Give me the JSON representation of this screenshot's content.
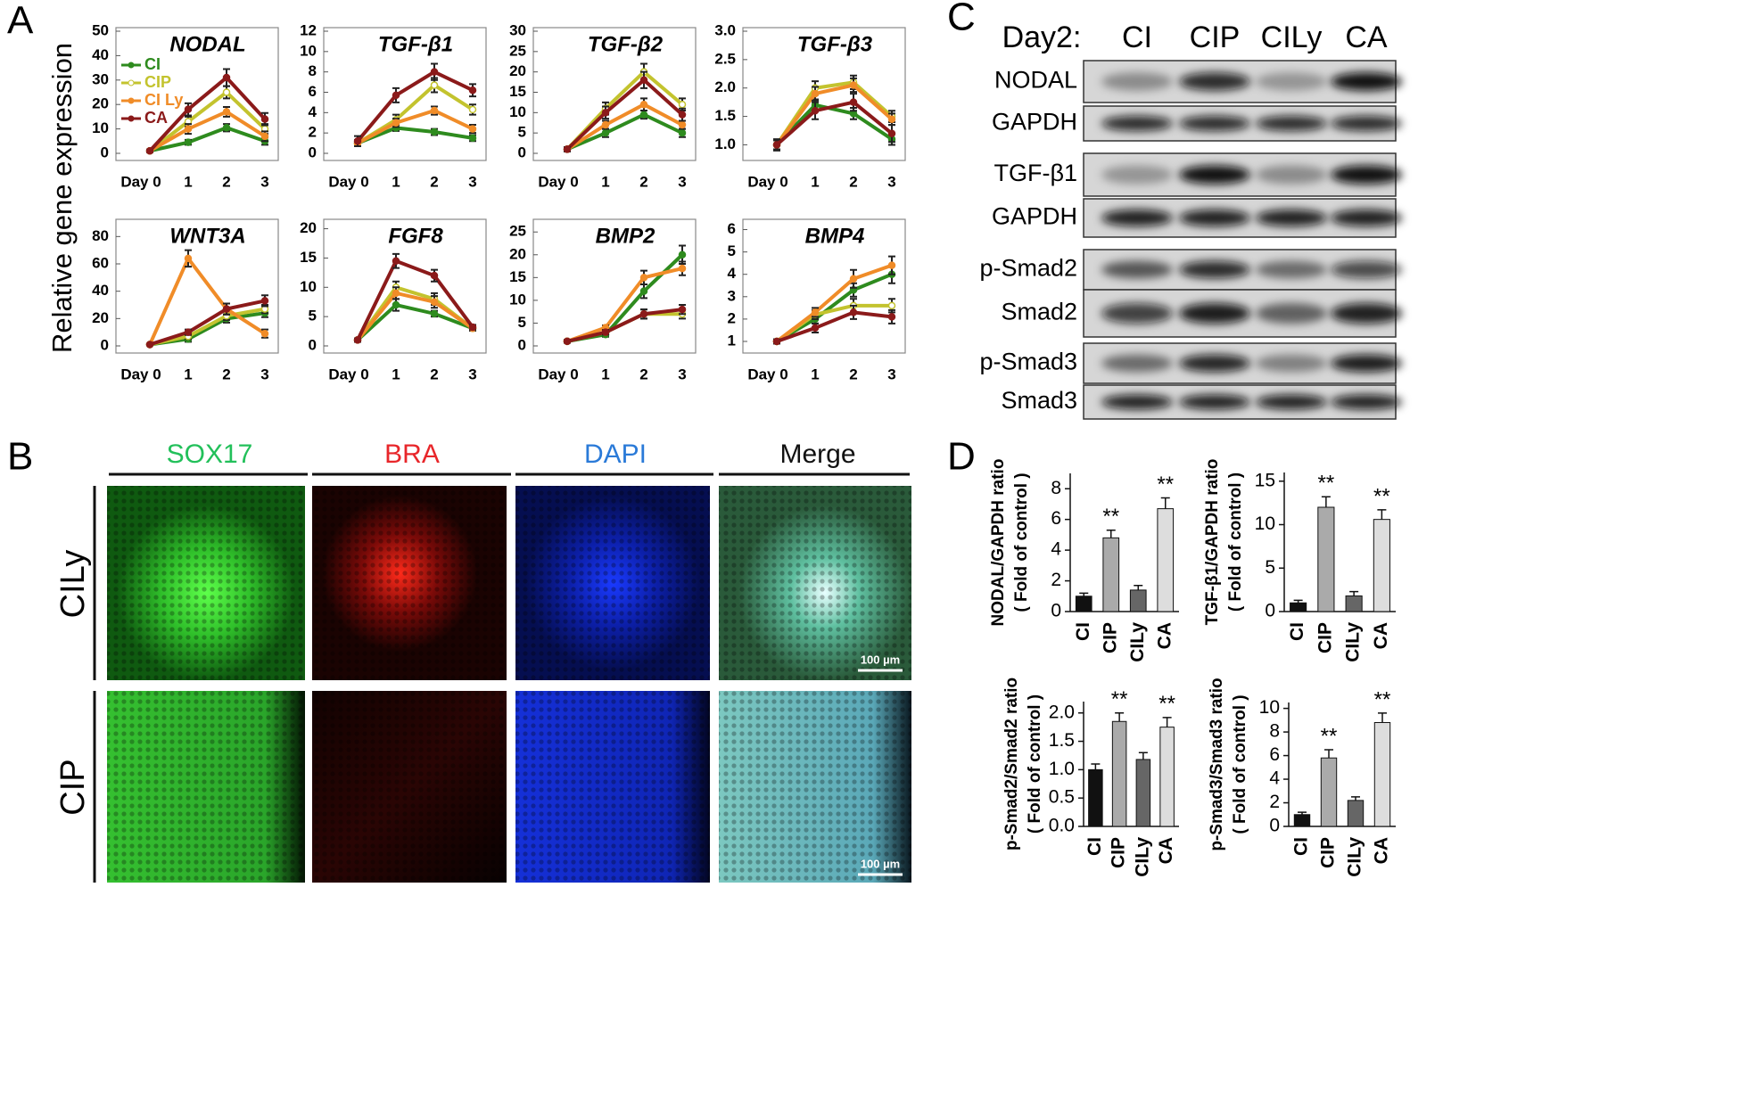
{
  "panel_labels": [
    "A",
    "B",
    "C",
    "D"
  ],
  "panel_a": {
    "ylabel": "Relative gene expression"
  },
  "chart_data": [
    {
      "type": "line",
      "title": "NODAL",
      "categories": [
        "Day 0",
        "1",
        "2",
        "3"
      ],
      "ylim": [
        0,
        50
      ],
      "yticks": [
        0,
        10,
        20,
        30,
        40,
        50
      ],
      "series": [
        {
          "name": "CI",
          "color": "#2e8b1e",
          "values": [
            1,
            4.5,
            10.5,
            5
          ],
          "errors": [
            0.5,
            1,
            1.5,
            1.5
          ]
        },
        {
          "name": "CIP",
          "color": "#c3c32e",
          "values": [
            1,
            13,
            25,
            10
          ],
          "errors": [
            0.5,
            2,
            2.5,
            2
          ]
        },
        {
          "name": "CI Ly",
          "color": "#f08c28",
          "values": [
            1,
            10,
            17,
            7
          ],
          "errors": [
            0.5,
            2,
            2,
            2
          ]
        },
        {
          "name": "CA",
          "color": "#8b1a1a",
          "values": [
            1,
            18,
            31,
            14
          ],
          "errors": [
            0.5,
            2.5,
            3.5,
            2.5
          ]
        }
      ]
    },
    {
      "type": "line",
      "title": "TGF-β1",
      "categories": [
        "Day 0",
        "1",
        "2",
        "3"
      ],
      "ylim": [
        0,
        12
      ],
      "yticks": [
        0,
        2,
        4,
        6,
        8,
        10,
        12
      ],
      "series": [
        {
          "color": "#2e8b1e",
          "values": [
            1,
            2.5,
            2.1,
            1.5
          ],
          "errors": [
            0.3,
            0.3,
            0.3,
            0.3
          ]
        },
        {
          "color": "#c3c32e",
          "values": [
            1,
            3.3,
            6.7,
            4.3
          ],
          "errors": [
            0.3,
            0.5,
            0.7,
            0.5
          ]
        },
        {
          "color": "#f08c28",
          "values": [
            1,
            3,
            4.2,
            2.4
          ],
          "errors": [
            0.3,
            0.4,
            0.4,
            0.4
          ]
        },
        {
          "color": "#8b1a1a",
          "values": [
            1.2,
            5.7,
            8,
            6.2
          ],
          "errors": [
            0.5,
            0.7,
            0.8,
            0.6
          ]
        }
      ]
    },
    {
      "type": "line",
      "title": "TGF-β2",
      "categories": [
        "Day 0",
        "1",
        "2",
        "3"
      ],
      "ylim": [
        0,
        30
      ],
      "yticks": [
        0,
        5,
        10,
        15,
        20,
        25,
        30
      ],
      "series": [
        {
          "color": "#2e8b1e",
          "values": [
            1,
            5,
            9.5,
            5
          ],
          "errors": [
            0.5,
            1,
            1,
            1
          ]
        },
        {
          "color": "#c3c32e",
          "values": [
            1,
            11,
            20,
            12
          ],
          "errors": [
            0.5,
            1.5,
            2,
            1.5
          ]
        },
        {
          "color": "#f08c28",
          "values": [
            1,
            7,
            12,
            7
          ],
          "errors": [
            0.5,
            1,
            1.5,
            1
          ]
        },
        {
          "color": "#8b1a1a",
          "values": [
            1,
            10,
            18,
            9.5
          ],
          "errors": [
            0.5,
            1.5,
            2,
            1.5
          ]
        }
      ]
    },
    {
      "type": "line",
      "title": "TGF-β3",
      "categories": [
        "Day 0",
        "1",
        "2",
        "3"
      ],
      "ylim": [
        0.85,
        3.0
      ],
      "yticks": [
        {
          "value": 1,
          "label": "1.0"
        },
        1.5,
        {
          "value": 2,
          "label": "2.0"
        },
        2.5,
        {
          "value": 3,
          "label": "3.0"
        }
      ],
      "series": [
        {
          "color": "#2e8b1e",
          "values": [
            1,
            1.7,
            1.55,
            1.1
          ],
          "errors": [
            0.08,
            0.1,
            0.1,
            0.1
          ]
        },
        {
          "color": "#c3c32e",
          "values": [
            1,
            2.0,
            2.1,
            1.5
          ],
          "errors": [
            0.08,
            0.12,
            0.12,
            0.1
          ]
        },
        {
          "color": "#f08c28",
          "values": [
            1,
            1.9,
            2.05,
            1.45
          ],
          "errors": [
            0.08,
            0.12,
            0.12,
            0.1
          ]
        },
        {
          "color": "#8b1a1a",
          "values": [
            1,
            1.6,
            1.75,
            1.2
          ],
          "errors": [
            0.1,
            0.15,
            0.15,
            0.15
          ]
        }
      ]
    },
    {
      "type": "line",
      "title": "WNT3A",
      "categories": [
        "Day 0",
        "1",
        "2",
        "3"
      ],
      "ylim": [
        0,
        90
      ],
      "yticks": [
        0,
        20,
        40,
        60,
        80
      ],
      "series": [
        {
          "color": "#2e8b1e",
          "values": [
            1,
            5,
            20,
            24
          ],
          "errors": [
            0.5,
            2,
            3,
            3
          ]
        },
        {
          "color": "#c3c32e",
          "values": [
            1,
            7,
            22,
            27
          ],
          "errors": [
            0.5,
            2,
            3,
            3
          ]
        },
        {
          "color": "#f08c28",
          "values": [
            1,
            64,
            27,
            9
          ],
          "errors": [
            0.5,
            6,
            4,
            3
          ]
        },
        {
          "color": "#8b1a1a",
          "values": [
            1,
            10,
            27,
            33
          ],
          "errors": [
            0.5,
            2,
            4,
            4
          ]
        }
      ]
    },
    {
      "type": "line",
      "title": "FGF8",
      "categories": [
        "Day 0",
        "1",
        "2",
        "3"
      ],
      "ylim": [
        0,
        21
      ],
      "yticks": [
        0,
        5,
        10,
        15,
        20
      ],
      "series": [
        {
          "color": "#2e8b1e",
          "values": [
            1,
            7,
            5.5,
            3
          ],
          "errors": [
            0.3,
            1,
            0.5,
            0.4
          ]
        },
        {
          "color": "#c3c32e",
          "values": [
            1,
            10,
            8,
            3
          ],
          "errors": [
            0.3,
            1,
            1,
            0.4
          ]
        },
        {
          "color": "#f08c28",
          "values": [
            1,
            9,
            7.5,
            3
          ],
          "errors": [
            0.3,
            1,
            1,
            0.4
          ]
        },
        {
          "color": "#8b1a1a",
          "values": [
            1,
            14.5,
            12,
            3.2
          ],
          "errors": [
            0.3,
            1.2,
            1,
            0.4
          ]
        }
      ]
    },
    {
      "type": "line",
      "title": "BMP2",
      "categories": [
        "Day 0",
        "1",
        "2",
        "3"
      ],
      "ylim": [
        0,
        27
      ],
      "yticks": [
        0,
        5,
        10,
        15,
        20,
        25
      ],
      "series": [
        {
          "color": "#2e8b1e",
          "values": [
            1,
            2.5,
            12,
            20
          ],
          "errors": [
            0.3,
            0.5,
            1.5,
            2
          ]
        },
        {
          "color": "#c3c32e",
          "values": [
            1,
            3,
            7,
            7
          ],
          "errors": [
            0.3,
            0.5,
            1,
            1
          ]
        },
        {
          "color": "#f08c28",
          "values": [
            1,
            4,
            15,
            17
          ],
          "errors": [
            0.3,
            0.5,
            1.5,
            1.5
          ]
        },
        {
          "color": "#8b1a1a",
          "values": [
            1,
            3,
            7,
            8
          ],
          "errors": [
            0.3,
            0.5,
            1,
            1
          ]
        }
      ]
    },
    {
      "type": "line",
      "title": "BMP4",
      "categories": [
        "Day 0",
        "1",
        "2",
        "3"
      ],
      "ylim": [
        0.8,
        6.3
      ],
      "yticks": [
        1,
        2,
        3,
        4,
        5,
        6
      ],
      "series": [
        {
          "color": "#2e8b1e",
          "values": [
            1,
            2,
            3.3,
            4
          ],
          "errors": [
            0.1,
            0.2,
            0.3,
            0.4
          ]
        },
        {
          "color": "#c3c32e",
          "values": [
            1,
            2.2,
            2.6,
            2.6
          ],
          "errors": [
            0.1,
            0.2,
            0.3,
            0.3
          ]
        },
        {
          "color": "#f08c28",
          "values": [
            1,
            2.3,
            3.8,
            4.4
          ],
          "errors": [
            0.1,
            0.2,
            0.4,
            0.4
          ]
        },
        {
          "color": "#8b1a1a",
          "values": [
            1,
            1.6,
            2.3,
            2.1
          ],
          "errors": [
            0.1,
            0.2,
            0.3,
            0.3
          ]
        }
      ]
    },
    {
      "type": "bar",
      "ylabel": [
        "NODAL/GAPDH ratio",
        "( Fold of control )"
      ],
      "categories": [
        "CI",
        "CIP",
        "CILy",
        "CA"
      ],
      "values": [
        1,
        4.8,
        1.4,
        6.7
      ],
      "errors": [
        0.2,
        0.5,
        0.3,
        0.7
      ],
      "annotations": [
        null,
        "**",
        null,
        "**"
      ],
      "colors": [
        "#111111",
        "#aaaaaa",
        "#666666",
        "#dddddd"
      ],
      "ylim": [
        0,
        9
      ],
      "yticks": [
        0,
        2,
        4,
        6,
        8
      ]
    },
    {
      "type": "bar",
      "ylabel": [
        "TGF-β1/GAPDH ratio",
        "( Fold of control )"
      ],
      "categories": [
        "CI",
        "CIP",
        "CILy",
        "CA"
      ],
      "values": [
        1,
        12,
        1.8,
        10.6
      ],
      "errors": [
        0.3,
        1.2,
        0.5,
        1.1
      ],
      "annotations": [
        null,
        "**",
        null,
        "**"
      ],
      "colors": [
        "#111111",
        "#aaaaaa",
        "#666666",
        "#dddddd"
      ],
      "ylim": [
        0,
        16
      ],
      "yticks": [
        0,
        5,
        10,
        15
      ]
    },
    {
      "type": "bar",
      "ylabel": [
        "p-Smad2/Smad2 ratio",
        "( Fold of control )"
      ],
      "categories": [
        "CI",
        "CIP",
        "CILy",
        "CA"
      ],
      "values": [
        1.0,
        1.85,
        1.18,
        1.75
      ],
      "errors": [
        0.1,
        0.15,
        0.12,
        0.17
      ],
      "annotations": [
        null,
        "**",
        null,
        "**"
      ],
      "colors": [
        "#111111",
        "#aaaaaa",
        "#666666",
        "#dddddd"
      ],
      "ylim": [
        0,
        2.2
      ],
      "yticks": [
        {
          "value": 0,
          "label": "0.0"
        },
        0.5,
        {
          "value": 1,
          "label": "1.0"
        },
        1.5,
        {
          "value": 2,
          "label": "2.0"
        }
      ]
    },
    {
      "type": "bar",
      "ylabel": [
        "p-Smad3/Smad3 ratio",
        "( Fold of control )"
      ],
      "categories": [
        "CI",
        "CIP",
        "CILy",
        "CA"
      ],
      "values": [
        1,
        5.8,
        2.2,
        8.8
      ],
      "errors": [
        0.2,
        0.7,
        0.3,
        0.8
      ],
      "annotations": [
        null,
        "**",
        null,
        "**"
      ],
      "colors": [
        "#111111",
        "#aaaaaa",
        "#666666",
        "#dddddd"
      ],
      "ylim": [
        0,
        10.5
      ],
      "yticks": [
        0,
        2,
        4,
        6,
        8,
        10
      ]
    }
  ],
  "panel_b": {
    "columns": [
      "SOX17",
      "BRA",
      "DAPI",
      "Merge"
    ],
    "rows": [
      "CILy",
      "CIP"
    ],
    "scale_bar": "100 µm"
  },
  "panel_c": {
    "header": "Day2:",
    "lanes": [
      "CI",
      "CIP",
      "CILy",
      "CA"
    ],
    "rows": [
      "NODAL",
      "GAPDH",
      "TGF-β1",
      "GAPDH",
      "p-Smad2",
      "Smad2",
      "p-Smad3",
      "Smad3"
    ]
  }
}
